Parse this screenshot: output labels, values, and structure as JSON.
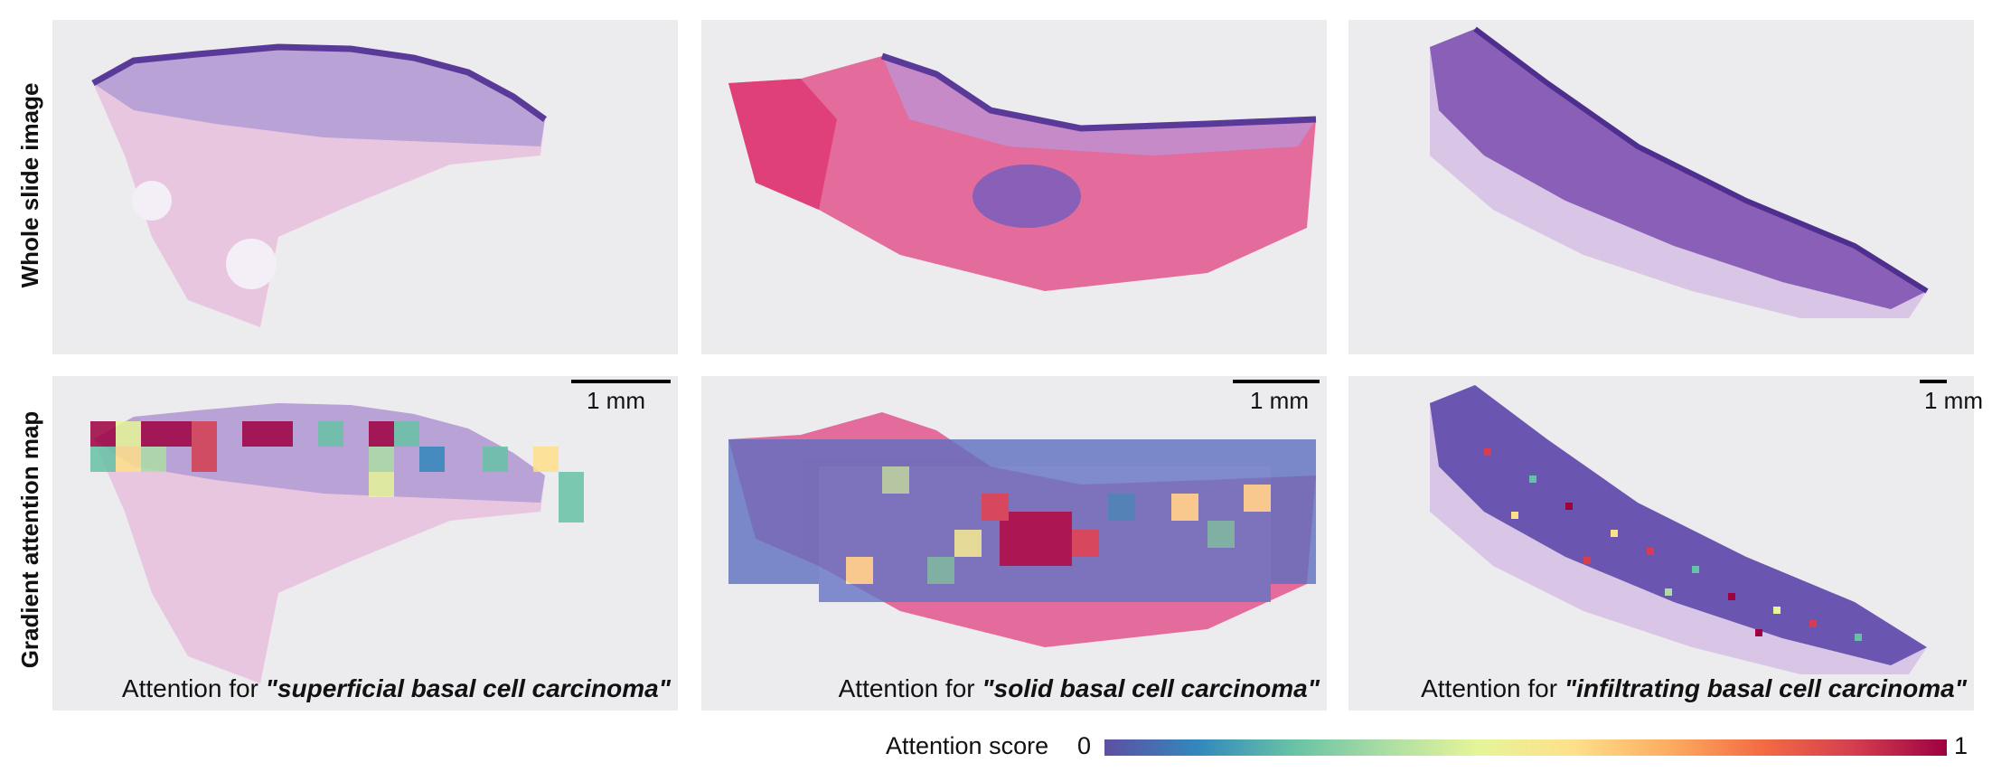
{
  "rows": {
    "top_label": "Whole slide image",
    "bottom_label": "Gradient attention map"
  },
  "scale_bars": [
    "1 mm",
    "1 mm",
    "1 mm"
  ],
  "captions": [
    {
      "prefix": "Attention for ",
      "term": "\"superficial basal cell carcinoma\""
    },
    {
      "prefix": "Attention for ",
      "term": "\"solid basal cell carcinoma\""
    },
    {
      "prefix": "Attention for ",
      "term": "\"infiltrating basal cell carcinoma\""
    }
  ],
  "legend": {
    "title": "Attention score",
    "min": "0",
    "max": "1",
    "colormap": [
      "#5e4fa2",
      "#3288bd",
      "#66c2a5",
      "#abdda4",
      "#e6f598",
      "#fee08b",
      "#fdae61",
      "#f46d43",
      "#d53e4f",
      "#9e0142"
    ]
  },
  "colors": {
    "panel_background": "#ececee",
    "stain_pink": "#e7b9d8",
    "stain_purple": "#8a5fb8",
    "stain_red": "#e0407a"
  }
}
